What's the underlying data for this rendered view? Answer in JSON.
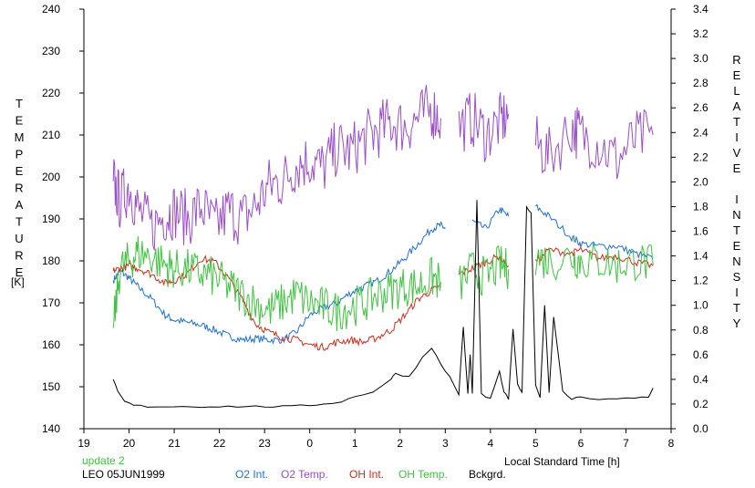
{
  "chart_data": {
    "type": "line",
    "title": "",
    "xlabel": "Local Standard Time [h]",
    "ylabel_left": "TEMPERATURE",
    "ylabel_left_unit": "[K]",
    "ylabel_right": "RELATIVE INTENSITY",
    "xlim": [
      19,
      8
    ],
    "xlim_note": "hours past 19 wrap through midnight: axis runs 19,20,...,23,0,1,...,8",
    "ylim_left": [
      140,
      240
    ],
    "ylim_right": [
      0.0,
      3.4
    ],
    "x_ticks": [
      "19",
      "20",
      "21",
      "22",
      "23",
      "0",
      "1",
      "2",
      "3",
      "4",
      "5",
      "6",
      "7",
      "8"
    ],
    "y_ticks_left": [
      "140",
      "150",
      "160",
      "170",
      "180",
      "190",
      "200",
      "210",
      "220",
      "230",
      "240"
    ],
    "y_ticks_right": [
      "0.0",
      "0.2",
      "0.4",
      "0.6",
      "0.8",
      "1.0",
      "1.2",
      "1.4",
      "1.6",
      "1.8",
      "2.0",
      "2.2",
      "2.4",
      "2.6",
      "2.8",
      "3.0",
      "3.2",
      "3.4"
    ],
    "grid": false,
    "annotation_update": "update 2",
    "annotation_station": "LEO 05JUN1999",
    "series": [
      {
        "name": "O2 Int.",
        "axis": "right",
        "color": "#1f6fd6",
        "x": [
          19.65,
          19.8,
          20.0,
          20.2,
          20.5,
          20.8,
          21.0,
          21.3,
          21.6,
          21.9,
          22.2,
          22.5,
          22.8,
          23.1,
          23.4,
          23.7,
          24.0,
          24.3,
          24.6,
          24.9,
          25.2,
          25.5,
          25.8,
          26.1,
          26.4,
          26.7,
          26.9,
          27.0,
          27.3,
          27.6,
          27.9,
          28.2,
          28.4,
          28.5,
          29.0,
          29.3,
          29.8,
          30.0,
          30.4,
          30.8,
          31.2,
          31.6
        ],
        "y": [
          1.2,
          1.28,
          1.22,
          1.15,
          1.05,
          0.92,
          0.88,
          0.86,
          0.84,
          0.8,
          0.75,
          0.72,
          0.73,
          0.72,
          0.72,
          0.78,
          0.92,
          0.98,
          1.02,
          1.1,
          1.15,
          1.2,
          1.28,
          1.38,
          1.5,
          1.62,
          1.65,
          1.62,
          null,
          1.68,
          1.62,
          1.78,
          1.72,
          null,
          1.8,
          1.72,
          1.55,
          1.5,
          1.48,
          1.48,
          1.42,
          1.38
        ]
      },
      {
        "name": "O2 Temp.",
        "axis": "left",
        "color": "#9b4dca",
        "x": [
          19.65,
          19.8,
          20.0,
          20.2,
          20.5,
          20.8,
          21.0,
          21.3,
          21.6,
          21.9,
          22.2,
          22.5,
          22.8,
          23.1,
          23.4,
          23.7,
          24.0,
          24.3,
          24.6,
          24.9,
          25.2,
          25.5,
          25.8,
          26.1,
          26.4,
          26.7,
          26.9,
          27.0,
          27.3,
          27.6,
          27.9,
          28.2,
          28.4,
          28.5,
          29.0,
          29.3,
          29.8,
          30.0,
          30.4,
          30.8,
          31.2,
          31.6
        ],
        "y": [
          199,
          194,
          198,
          192,
          188,
          191,
          192,
          190,
          193,
          188,
          192,
          190,
          193,
          198,
          199,
          203,
          204,
          202,
          207,
          206,
          209,
          211,
          213,
          212,
          214,
          216,
          214,
          null,
          212,
          214,
          210,
          213,
          215,
          null,
          208,
          205,
          212,
          210,
          208,
          204,
          209,
          210
        ]
      },
      {
        "name": "OH Int.",
        "axis": "right",
        "color": "#d42a1a",
        "x": [
          19.65,
          19.8,
          20.0,
          20.2,
          20.5,
          20.8,
          21.0,
          21.3,
          21.6,
          21.9,
          22.2,
          22.5,
          22.8,
          23.1,
          23.4,
          23.7,
          24.0,
          24.3,
          24.6,
          24.9,
          25.2,
          25.5,
          25.8,
          26.1,
          26.4,
          26.7,
          26.9,
          27.0,
          27.3,
          27.6,
          27.9,
          28.2,
          28.4,
          28.5,
          29.0,
          29.3,
          29.8,
          30.0,
          30.4,
          30.8,
          31.2,
          31.6
        ],
        "y": [
          1.28,
          1.3,
          1.32,
          1.3,
          1.25,
          1.18,
          1.2,
          1.26,
          1.38,
          1.35,
          1.22,
          1.05,
          0.85,
          0.78,
          0.74,
          0.72,
          0.68,
          0.66,
          0.7,
          0.72,
          0.7,
          0.74,
          0.8,
          0.92,
          1.05,
          1.12,
          1.15,
          null,
          1.25,
          1.3,
          1.35,
          1.4,
          1.32,
          null,
          1.35,
          1.45,
          1.42,
          1.45,
          1.38,
          1.4,
          1.35,
          1.32
        ]
      },
      {
        "name": "OH Temp.",
        "axis": "left",
        "color": "#3ec43e",
        "x": [
          19.65,
          19.8,
          20.0,
          20.2,
          20.5,
          20.8,
          21.0,
          21.3,
          21.6,
          21.9,
          22.2,
          22.5,
          22.8,
          23.1,
          23.4,
          23.7,
          24.0,
          24.3,
          24.6,
          24.9,
          25.2,
          25.5,
          25.8,
          26.1,
          26.4,
          26.7,
          26.9,
          27.0,
          27.3,
          27.6,
          27.9,
          28.2,
          28.4,
          28.5,
          29.0,
          29.3,
          29.8,
          30.0,
          30.4,
          30.8,
          31.2,
          31.6
        ],
        "y": [
          164,
          178,
          180,
          182,
          181,
          179,
          178,
          178,
          177,
          176,
          174,
          172,
          170,
          168,
          170,
          172,
          170,
          169,
          168,
          169,
          170,
          172,
          173,
          174,
          174,
          176,
          175,
          null,
          174,
          178,
          176,
          179,
          178,
          null,
          181,
          180,
          181,
          180,
          180,
          179,
          180,
          179
        ]
      },
      {
        "name": "Bckgrd.",
        "axis": "right",
        "color": "#000000",
        "x": [
          19.65,
          19.75,
          19.9,
          20.1,
          20.4,
          20.8,
          21.2,
          21.6,
          22.0,
          22.4,
          22.8,
          23.2,
          23.6,
          24.0,
          24.3,
          24.7,
          25.0,
          25.4,
          25.8,
          25.9,
          26.2,
          26.5,
          26.7,
          26.9,
          27.1,
          27.3,
          27.4,
          27.5,
          27.55,
          27.6,
          27.7,
          27.8,
          28.0,
          28.2,
          28.3,
          28.4,
          28.5,
          28.6,
          28.7,
          28.8,
          28.9,
          29.0,
          29.1,
          29.2,
          29.3,
          29.4,
          29.6,
          29.8,
          30.0,
          30.4,
          30.8,
          31.2,
          31.5,
          31.6
        ],
        "y": [
          0.4,
          0.3,
          0.22,
          0.19,
          0.18,
          0.18,
          0.18,
          0.18,
          0.18,
          0.18,
          0.18,
          0.18,
          0.18,
          0.19,
          0.2,
          0.22,
          0.26,
          0.3,
          0.4,
          0.45,
          0.42,
          0.58,
          0.66,
          0.52,
          0.42,
          0.28,
          0.82,
          0.28,
          0.6,
          0.28,
          1.85,
          0.28,
          0.24,
          0.46,
          0.3,
          0.24,
          0.8,
          0.36,
          0.3,
          1.8,
          1.75,
          0.35,
          0.26,
          1.0,
          0.3,
          0.9,
          0.3,
          0.24,
          0.26,
          0.24,
          0.24,
          0.25,
          0.26,
          0.33
        ]
      }
    ]
  }
}
